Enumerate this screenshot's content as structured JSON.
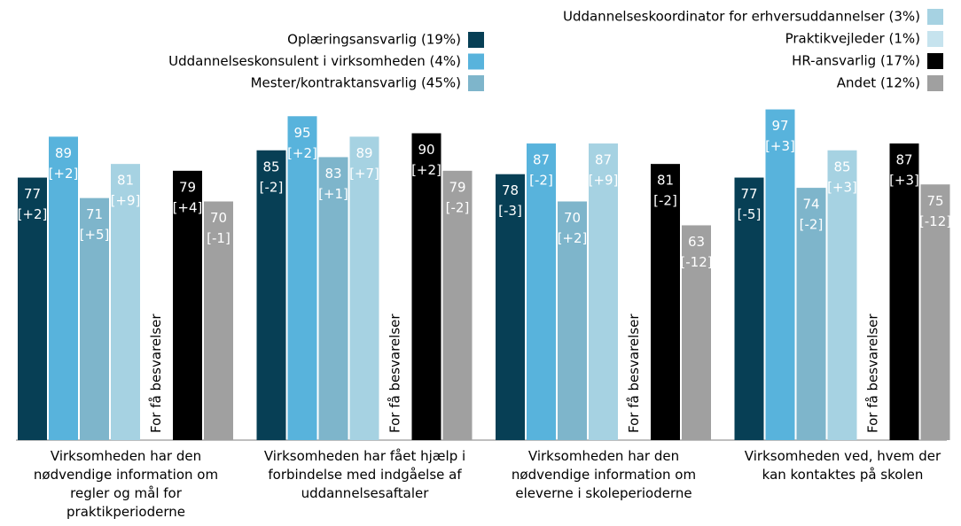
{
  "chart_data": {
    "type": "bar",
    "categories": [
      "Virksomheden har den nødvendige information om regler og mål for praktikperioderne",
      "Virksomheden har fået hjælp i forbindelse med indgåelse af uddannelsesaftaler",
      "Virksomheden har den nødvendige information om eleverne i skoleperioderne",
      "Virksomheden ved, hvem der kan kontaktes på skolen"
    ],
    "series": [
      {
        "name": "Oplæringsansvarlig (19%)",
        "color": "#073f55",
        "values": [
          77,
          85,
          78,
          77
        ],
        "change_labels": [
          "[+2]",
          "[-2]",
          "[-3]",
          "[-5]"
        ]
      },
      {
        "name": "Uddannelseskonsulent i virksomheden (4%)",
        "color": "#58b3dc",
        "values": [
          89,
          95,
          87,
          97
        ],
        "change_labels": [
          "[+2]",
          "[+2]",
          "[-2]",
          "[+3]"
        ]
      },
      {
        "name": "Mester/kontraktansvarlig (45%)",
        "color": "#7eb5cb",
        "values": [
          71,
          83,
          70,
          74
        ],
        "change_labels": [
          "[+5]",
          "[+1]",
          "[+2]",
          "[-2]"
        ]
      },
      {
        "name": "Uddannelseskoordinator for erhversuddannelser (3%)",
        "color": "#a6d2e2",
        "values": [
          81,
          89,
          87,
          85
        ],
        "change_labels": [
          "[+9]",
          "[+7]",
          "[+9]",
          "[+3]"
        ]
      },
      {
        "name": "Praktikvejleder (1%)",
        "color": "#c6e3ee",
        "values": [
          null,
          null,
          null,
          null
        ],
        "change_labels": [
          null,
          null,
          null,
          null
        ]
      },
      {
        "name": "HR-ansvarlig (17%)",
        "color": "#000000",
        "values": [
          79,
          90,
          81,
          87
        ],
        "change_labels": [
          "[+4]",
          "[+2]",
          "[-2]",
          "[+3]"
        ]
      },
      {
        "name": "Andet (12%)",
        "color": "#a0a0a0",
        "values": [
          70,
          79,
          63,
          75
        ],
        "change_labels": [
          "[-1]",
          "[-2]",
          "[-12]",
          "[-12]"
        ]
      }
    ],
    "annotation": "For få besvarelser",
    "ylim": [
      0,
      100
    ]
  }
}
